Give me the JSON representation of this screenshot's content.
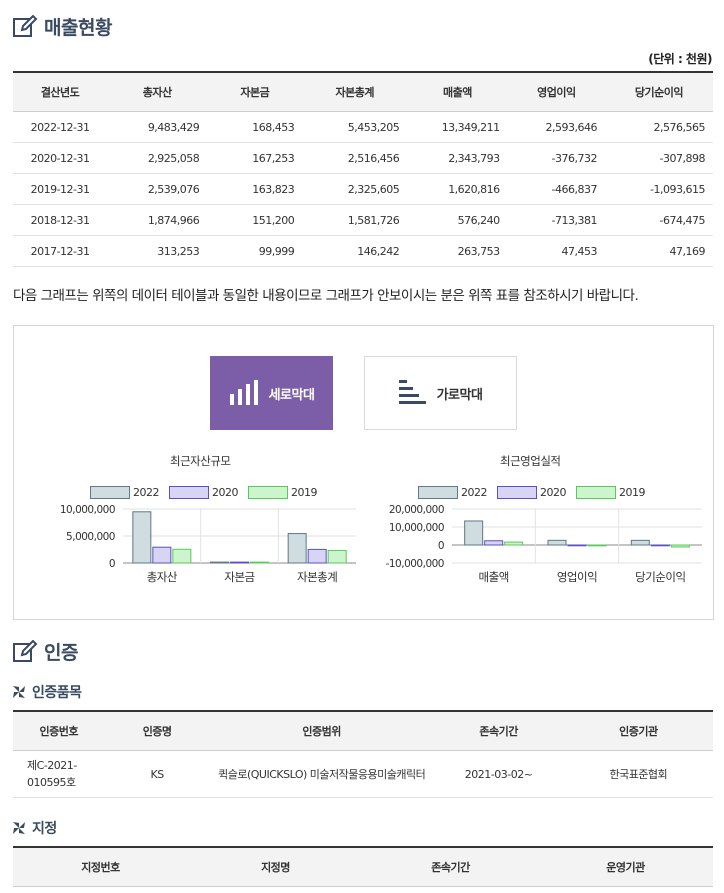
{
  "sales": {
    "title": "매출현황",
    "unit": "(단위 : 천원)",
    "headers": [
      "결산년도",
      "총자산",
      "자본금",
      "자본총계",
      "매출액",
      "영업이익",
      "당기순이익"
    ],
    "rows": [
      [
        "2022-12-31",
        "9,483,429",
        "168,453",
        "5,453,205",
        "13,349,211",
        "2,593,646",
        "2,576,565"
      ],
      [
        "2020-12-31",
        "2,925,058",
        "167,253",
        "2,516,456",
        "2,343,793",
        "-376,732",
        "-307,898"
      ],
      [
        "2019-12-31",
        "2,539,076",
        "163,823",
        "2,325,605",
        "1,620,816",
        "-466,837",
        "-1,093,615"
      ],
      [
        "2018-12-31",
        "1,874,966",
        "151,200",
        "1,581,726",
        "576,240",
        "-713,381",
        "-674,475"
      ],
      [
        "2017-12-31",
        "313,253",
        "99,999",
        "146,242",
        "263,753",
        "47,453",
        "47,169"
      ]
    ]
  },
  "notice": "다음 그래프는 위쪽의 데이터 테이블과 동일한 내용이므로 그래프가 안보이시는 분은 위쪽 표를 참조하시기 바랍니다.",
  "tabs": {
    "vertical": "세로막대",
    "horizontal": "가로막대"
  },
  "colors": {
    "s2022": "#cfdce0",
    "s2022_border": "#5e7a86",
    "s2020": "#d8d4f4",
    "s2020_border": "#5a50c8",
    "s2019": "#cdf5cd",
    "s2019_border": "#5bc85b",
    "accent": "#7b5ea7"
  },
  "chart_data": [
    {
      "type": "bar",
      "title": "최근자산규모",
      "categories": [
        "총자산",
        "자본금",
        "자본총계"
      ],
      "series": [
        {
          "name": "2022",
          "values": [
            9483429,
            168453,
            5453205
          ]
        },
        {
          "name": "2020",
          "values": [
            2925058,
            167253,
            2516456
          ]
        },
        {
          "name": "2019",
          "values": [
            2539076,
            163823,
            2325605
          ]
        }
      ],
      "yticks": [
        "10,000,000",
        "5,000,000",
        "0"
      ],
      "ylim": [
        0,
        10000000
      ]
    },
    {
      "type": "bar",
      "title": "최근영업실적",
      "categories": [
        "매출액",
        "영업이익",
        "당기순이익"
      ],
      "series": [
        {
          "name": "2022",
          "values": [
            13349211,
            2593646,
            2576565
          ]
        },
        {
          "name": "2020",
          "values": [
            2343793,
            -376732,
            -307898
          ]
        },
        {
          "name": "2019",
          "values": [
            1620816,
            -466837,
            -1093615
          ]
        }
      ],
      "yticks": [
        "20,000,000",
        "10,000,000",
        "0",
        "-10,000,000"
      ],
      "ylim": [
        -10000000,
        20000000
      ]
    }
  ],
  "cert": {
    "title": "인증",
    "items_title": "인증품목",
    "headers": [
      "인증번호",
      "인증명",
      "인증범위",
      "존속기간",
      "인증기관"
    ],
    "rows": [
      [
        "제C-2021-010595호",
        "KS",
        "퀵슬로(QUICKSLO) 미술저작물응용미술캐릭터",
        "2021-03-02~",
        "한국표준협회"
      ]
    ],
    "designation_title": "지정",
    "designation_headers": [
      "지정번호",
      "지정명",
      "존속기간",
      "운영기관"
    ]
  }
}
